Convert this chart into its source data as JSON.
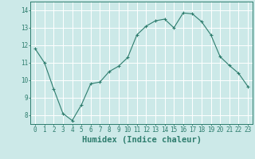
{
  "x": [
    0,
    1,
    2,
    3,
    4,
    5,
    6,
    7,
    8,
    9,
    10,
    11,
    12,
    13,
    14,
    15,
    16,
    17,
    18,
    19,
    20,
    21,
    22,
    23
  ],
  "y": [
    11.8,
    11.0,
    9.5,
    8.1,
    7.7,
    8.6,
    9.8,
    9.9,
    10.5,
    10.8,
    11.3,
    12.6,
    13.1,
    13.4,
    13.5,
    13.0,
    13.85,
    13.8,
    13.35,
    12.6,
    11.35,
    10.85,
    10.4,
    9.65
  ],
  "line_color": "#2e7d6e",
  "marker": "+",
  "marker_size": 3,
  "marker_linewidth": 0.8,
  "background_color": "#cce9e8",
  "grid_color": "#ffffff",
  "axis_color": "#2e7d6e",
  "xlabel": "Humidex (Indice chaleur)",
  "ylim": [
    7.5,
    14.5
  ],
  "xlim": [
    -0.5,
    23.5
  ],
  "yticks": [
    8,
    9,
    10,
    11,
    12,
    13,
    14
  ],
  "xticks": [
    0,
    1,
    2,
    3,
    4,
    5,
    6,
    7,
    8,
    9,
    10,
    11,
    12,
    13,
    14,
    15,
    16,
    17,
    18,
    19,
    20,
    21,
    22,
    23
  ],
  "tick_label_fontsize": 5.5,
  "xlabel_fontsize": 7.5,
  "line_width": 0.8
}
